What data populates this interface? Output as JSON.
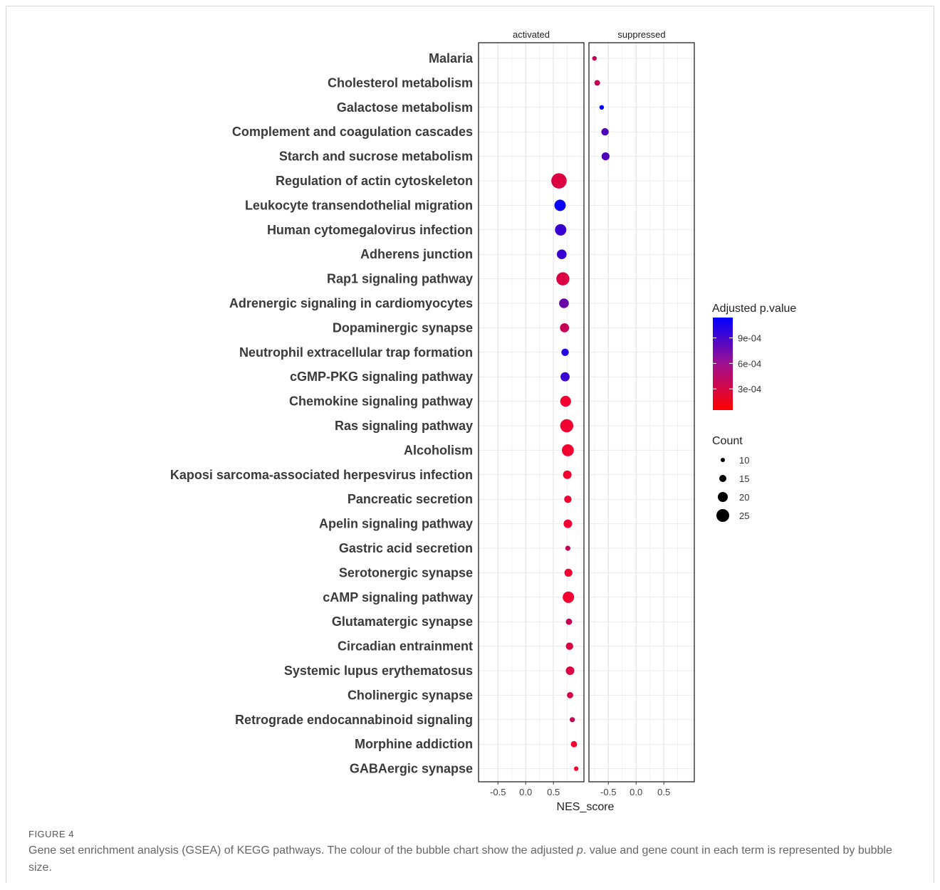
{
  "figure": {
    "label": "FIGURE 4",
    "caption_before": "Gene set enrichment analysis (GSEA) of KEGG pathways. The colour of the bubble chart show the adjusted ",
    "caption_italic": "p",
    "caption_after": ". value and gene count in each term is represented by bubble size."
  },
  "chart_data": {
    "type": "scatter",
    "subtype": "bubble",
    "facets": [
      "activated",
      "suppressed"
    ],
    "xlabel": "NES_score",
    "ylabel": "",
    "xticks": [
      -0.5,
      0.0,
      0.5
    ],
    "xtick_labels": [
      "-0.5",
      "0.0",
      "0.5"
    ],
    "xlim": [
      -0.85,
      1.05
    ],
    "grid": true,
    "legend_position": "right",
    "color_legend": {
      "title": "Adjusted p.value",
      "ticks": [
        0.0009,
        0.0006,
        0.0003
      ],
      "tick_labels": [
        "9e-04",
        "6e-04",
        "3e-04"
      ],
      "range": [
        5e-05,
        0.00114
      ],
      "low_color": "#ff0000",
      "high_color": "#0000ff"
    },
    "size_legend": {
      "title": "Count",
      "values": [
        10,
        15,
        20,
        25
      ],
      "labels": [
        "10",
        "15",
        "20",
        "25"
      ]
    },
    "categories": [
      "Malaria",
      "Cholesterol metabolism",
      "Galactose metabolism",
      "Complement and coagulation cascades",
      "Starch and sucrose metabolism",
      "Regulation of actin cytoskeleton",
      "Leukocyte transendothelial migration",
      "Human cytomegalovirus infection",
      "Adherens junction",
      "Rap1 signaling pathway",
      "Adrenergic signaling in cardiomyocytes",
      "Dopaminergic synapse",
      "Neutrophil extracellular trap formation",
      "cGMP-PKG signaling pathway",
      "Chemokine signaling pathway",
      "Ras signaling pathway",
      "Alcoholism",
      "Kaposi sarcoma-associated herpesvirus infection",
      "Pancreatic secretion",
      "Apelin signaling pathway",
      "Gastric acid secretion",
      "Serotonergic synapse",
      "cAMP signaling pathway",
      "Glutamatergic synapse",
      "Circadian entrainment",
      "Systemic lupus erythematosus",
      "Cholinergic synapse",
      "Retrograde endocannabinoid signaling",
      "Morphine addiction",
      "GABAergic synapse"
    ],
    "points": [
      {
        "term": "Malaria",
        "facet": "suppressed",
        "nes": -0.75,
        "padj": 0.0003,
        "count": 8
      },
      {
        "term": "Cholesterol metabolism",
        "facet": "suppressed",
        "nes": -0.7,
        "padj": 0.0003,
        "count": 10
      },
      {
        "term": "Galactose metabolism",
        "facet": "suppressed",
        "nes": -0.62,
        "padj": 0.00114,
        "count": 8
      },
      {
        "term": "Complement and coagulation cascades",
        "facet": "suppressed",
        "nes": -0.56,
        "padj": 0.0008,
        "count": 13
      },
      {
        "term": "Starch and sucrose metabolism",
        "facet": "suppressed",
        "nes": -0.55,
        "padj": 0.0008,
        "count": 14
      },
      {
        "term": "Regulation of actin cytoskeleton",
        "facet": "activated",
        "nes": 0.6,
        "padj": 0.0002,
        "count": 27
      },
      {
        "term": "Leukocyte transendothelial migration",
        "facet": "activated",
        "nes": 0.62,
        "padj": 0.0011,
        "count": 20
      },
      {
        "term": "Human cytomegalovirus infection",
        "facet": "activated",
        "nes": 0.63,
        "padj": 0.0009,
        "count": 20
      },
      {
        "term": "Adherens junction",
        "facet": "activated",
        "nes": 0.65,
        "padj": 0.0009,
        "count": 17
      },
      {
        "term": "Rap1 signaling pathway",
        "facet": "activated",
        "nes": 0.67,
        "padj": 0.0002,
        "count": 23
      },
      {
        "term": "Adrenergic signaling in cardiomyocytes",
        "facet": "activated",
        "nes": 0.69,
        "padj": 0.0007,
        "count": 17
      },
      {
        "term": "Dopaminergic synapse",
        "facet": "activated",
        "nes": 0.7,
        "padj": 0.0003,
        "count": 16
      },
      {
        "term": "Neutrophil extracellular trap formation",
        "facet": "activated",
        "nes": 0.71,
        "padj": 0.001,
        "count": 13
      },
      {
        "term": "cGMP-PKG signaling pathway",
        "facet": "activated",
        "nes": 0.71,
        "padj": 0.0009,
        "count": 16
      },
      {
        "term": "Chemokine signaling pathway",
        "facet": "activated",
        "nes": 0.72,
        "padj": 0.0001,
        "count": 19
      },
      {
        "term": "Ras signaling pathway",
        "facet": "activated",
        "nes": 0.74,
        "padj": 0.0001,
        "count": 23
      },
      {
        "term": "Alcoholism",
        "facet": "activated",
        "nes": 0.76,
        "padj": 0.0001,
        "count": 21
      },
      {
        "term": "Kaposi sarcoma-associated herpesvirus infection",
        "facet": "activated",
        "nes": 0.75,
        "padj": 0.0001,
        "count": 15
      },
      {
        "term": "Pancreatic secretion",
        "facet": "activated",
        "nes": 0.76,
        "padj": 0.0001,
        "count": 13
      },
      {
        "term": "Apelin signaling pathway",
        "facet": "activated",
        "nes": 0.76,
        "padj": 0.0001,
        "count": 15
      },
      {
        "term": "Gastric acid secretion",
        "facet": "activated",
        "nes": 0.76,
        "padj": 0.0003,
        "count": 9
      },
      {
        "term": "Serotonergic synapse",
        "facet": "activated",
        "nes": 0.77,
        "padj": 0.0001,
        "count": 14
      },
      {
        "term": "cAMP signaling pathway",
        "facet": "activated",
        "nes": 0.77,
        "padj": 0.0001,
        "count": 20
      },
      {
        "term": "Glutamatergic synapse",
        "facet": "activated",
        "nes": 0.78,
        "padj": 0.0003,
        "count": 11
      },
      {
        "term": "Circadian entrainment",
        "facet": "activated",
        "nes": 0.79,
        "padj": 0.0002,
        "count": 13
      },
      {
        "term": "Systemic lupus erythematosus",
        "facet": "activated",
        "nes": 0.8,
        "padj": 0.0002,
        "count": 15
      },
      {
        "term": "Cholinergic synapse",
        "facet": "activated",
        "nes": 0.8,
        "padj": 0.0002,
        "count": 11
      },
      {
        "term": "Retrograde endocannabinoid signaling",
        "facet": "activated",
        "nes": 0.84,
        "padj": 0.0003,
        "count": 9
      },
      {
        "term": "Morphine addiction",
        "facet": "activated",
        "nes": 0.87,
        "padj": 0.0001,
        "count": 11
      },
      {
        "term": "GABAergic synapse",
        "facet": "activated",
        "nes": 0.91,
        "padj": 0.0001,
        "count": 8
      }
    ]
  }
}
